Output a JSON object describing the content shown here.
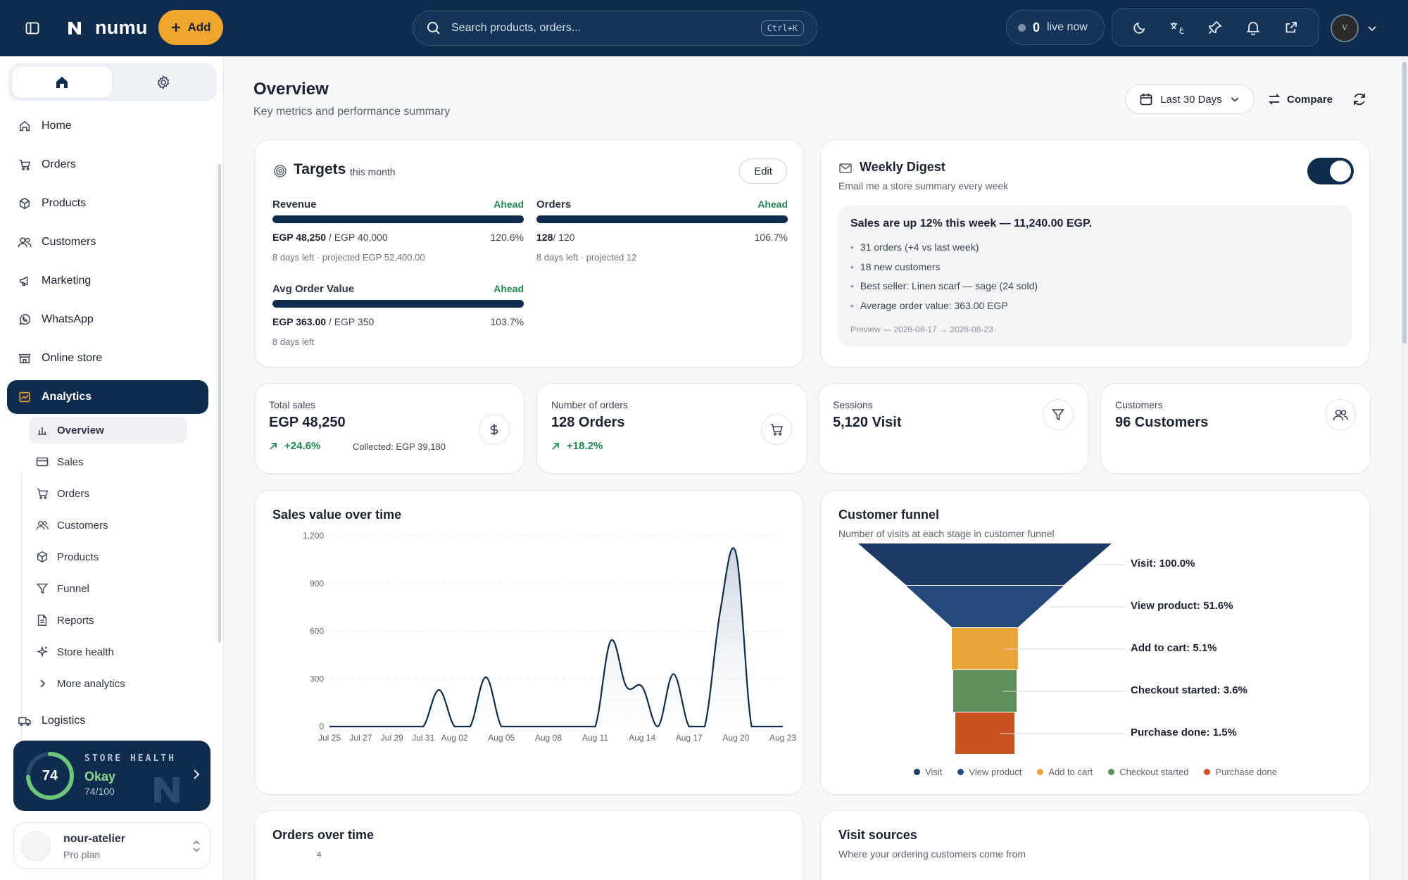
{
  "topbar": {
    "brand": "numu",
    "add_label": "Add",
    "search_placeholder": "Search products, orders...",
    "search_shortcut": "Ctrl+K",
    "live_count": "0",
    "live_label": "live now",
    "avatar_text": "V"
  },
  "sidebar": {
    "items": [
      {
        "label": "Home",
        "icon": "home-icon"
      },
      {
        "label": "Orders",
        "icon": "cart-icon"
      },
      {
        "label": "Products",
        "icon": "box-icon"
      },
      {
        "label": "Customers",
        "icon": "users-icon"
      },
      {
        "label": "Marketing",
        "icon": "megaphone-icon"
      },
      {
        "label": "WhatsApp",
        "icon": "whatsapp-icon"
      },
      {
        "label": "Online store",
        "icon": "store-icon"
      },
      {
        "label": "Analytics",
        "icon": "chart-icon"
      }
    ],
    "analytics_sub": [
      {
        "label": "Overview"
      },
      {
        "label": "Sales"
      },
      {
        "label": "Orders"
      },
      {
        "label": "Customers"
      },
      {
        "label": "Products"
      },
      {
        "label": "Funnel"
      },
      {
        "label": "Reports"
      },
      {
        "label": "Store health"
      },
      {
        "label": "More analytics"
      }
    ],
    "logistics_label": "Logistics",
    "health": {
      "title": "STORE HEALTH",
      "score": "74",
      "status": "Okay",
      "sub": "74/100",
      "score_fraction": 0.74
    },
    "account": {
      "name": "nour-atelier",
      "plan": "Pro plan"
    }
  },
  "header": {
    "title": "Overview",
    "subtitle": "Key metrics and performance summary",
    "date_range": "Last 30 Days",
    "compare": "Compare"
  },
  "targets": {
    "title": "Targets",
    "period": "this month",
    "edit": "Edit",
    "items": [
      {
        "label": "Revenue",
        "status": "Ahead",
        "value": "EGP 48,250",
        "target": " / EGP 40,000",
        "pct": "120.6%",
        "note": "8 days left · projected EGP 52,400.00",
        "progress": 1.0
      },
      {
        "label": "Orders",
        "status": "Ahead",
        "value": "128",
        "target": "/ 120",
        "pct": "106.7%",
        "note": "8 days left · projected 12",
        "progress": 1.0
      },
      {
        "label": "Avg Order Value",
        "status": "Ahead",
        "value": "EGP 363.00",
        "target": " / EGP 350",
        "pct": "103.7%",
        "note": "8 days left",
        "progress": 1.0
      }
    ]
  },
  "digest": {
    "title": "Weekly Digest",
    "subtitle": "Email me a store summary every week",
    "enabled": true,
    "headline": "Sales are up 12% this week — 11,240.00 EGP.",
    "bullets": [
      "31 orders (+4 vs last week)",
      "18 new customers",
      "Best seller: Linen scarf — sage (24 sold)",
      "Average order value: 363.00 EGP"
    ],
    "preview": "Preview — 2026-08-17 → 2026-08-23"
  },
  "kpis": [
    {
      "label": "Total sales",
      "value": "EGP 48,250",
      "trend": "+24.6%",
      "collected": "Collected: EGP 39,180",
      "icon": "dollar-icon"
    },
    {
      "label": "Number of orders",
      "value": "128 Orders",
      "trend": "+18.2%",
      "icon": "cart-icon"
    },
    {
      "label": "Sessions",
      "value": "5,120 Visit",
      "icon": "filter-icon"
    },
    {
      "label": "Customers",
      "value": "96 Customers",
      "icon": "users-icon"
    }
  ],
  "sales_chart": {
    "title": "Sales value over time"
  },
  "funnel": {
    "title": "Customer funnel",
    "subtitle": "Number of visits at each stage in customer funnel",
    "stages": [
      {
        "label": "Visit: 100.0%",
        "name": "Visit",
        "color": "#1b3b66"
      },
      {
        "label": "View product: 51.6%",
        "name": "View product",
        "color": "#24497a"
      },
      {
        "label": "Add to cart: 5.1%",
        "name": "Add to cart",
        "color": "#e9a43a"
      },
      {
        "label": "Checkout started: 3.6%",
        "name": "Checkout started",
        "color": "#5e8f5c"
      },
      {
        "label": "Purchase done: 1.5%",
        "name": "Purchase done",
        "color": "#c9531f"
      }
    ]
  },
  "orders_chart": {
    "title": "Orders over time",
    "first_tick": "4"
  },
  "visit_sources": {
    "title": "Visit sources",
    "subtitle": "Where your ordering customers come from"
  },
  "chart_data": [
    {
      "type": "area",
      "title": "Sales value over time",
      "xlabel": "",
      "ylabel": "",
      "ylim": [
        0,
        1200
      ],
      "yticks": [
        0,
        300,
        600,
        900,
        1200
      ],
      "ytick_labels": [
        "0",
        "300",
        "600",
        "900",
        "1,200"
      ],
      "xtick_labels": [
        "Jul 25",
        "Jul 27",
        "Jul 29",
        "Jul 31",
        "Aug 02",
        "Aug 05",
        "Aug 08",
        "Aug 11",
        "Aug 14",
        "Aug 17",
        "Aug 20",
        "Aug 23"
      ],
      "x": [
        "Jul 25",
        "Jul 26",
        "Jul 27",
        "Jul 28",
        "Jul 29",
        "Jul 30",
        "Jul 31",
        "Aug 01",
        "Aug 02",
        "Aug 03",
        "Aug 04",
        "Aug 05",
        "Aug 06",
        "Aug 07",
        "Aug 08",
        "Aug 09",
        "Aug 10",
        "Aug 11",
        "Aug 12",
        "Aug 13",
        "Aug 14",
        "Aug 15",
        "Aug 16",
        "Aug 17",
        "Aug 18",
        "Aug 19",
        "Aug 20",
        "Aug 21",
        "Aug 22",
        "Aug 23"
      ],
      "values": [
        0,
        0,
        0,
        0,
        0,
        0,
        0,
        230,
        0,
        0,
        310,
        0,
        0,
        0,
        0,
        0,
        0,
        0,
        540,
        250,
        250,
        0,
        330,
        0,
        0,
        730,
        1090,
        0,
        0,
        0
      ],
      "grid": true,
      "grid_style": "dashed"
    },
    {
      "type": "funnel",
      "title": "Customer funnel",
      "categories": [
        "Visit",
        "View product",
        "Add to cart",
        "Checkout started",
        "Purchase done"
      ],
      "values": [
        100.0,
        51.6,
        5.1,
        3.6,
        1.5
      ],
      "colors": [
        "#1b3b66",
        "#24497a",
        "#e9a43a",
        "#5e8f5c",
        "#c9531f"
      ],
      "legend": "bottom"
    }
  ]
}
